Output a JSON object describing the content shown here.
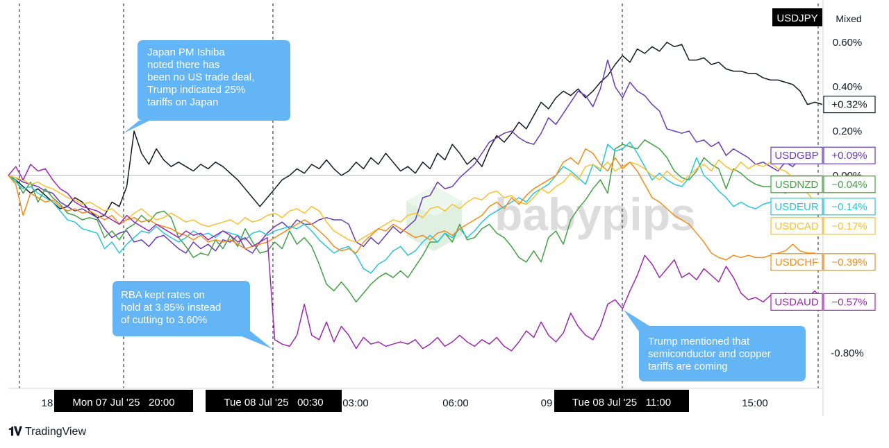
{
  "chart_data": {
    "type": "line",
    "title": "",
    "xlabel": "",
    "ylabel": "",
    "scale_mode": "Mixed",
    "ylim": [
      -0.9,
      0.7
    ],
    "y_ticks": [
      "0.60%",
      "0.40%",
      "0.20%",
      "0.00%",
      "-0.80%"
    ],
    "x_ticks": [
      "18",
      "03:00",
      "06:00",
      "09",
      "15:00"
    ],
    "time_markers": [
      "Mon 07 Jul '25   20:00",
      "Tue 08 Jul '25   00:30",
      "Tue 08 Jul '25   11:00"
    ],
    "x": [
      0,
      1,
      2,
      3,
      4,
      5,
      6,
      7,
      8,
      9,
      10,
      11,
      12,
      13,
      14,
      15,
      16,
      17,
      18,
      19,
      20,
      21,
      22,
      23,
      24,
      25,
      26,
      27,
      28,
      29,
      30,
      31,
      32,
      33,
      34,
      35,
      36,
      37,
      38,
      39,
      40,
      41,
      42,
      43,
      44,
      45,
      46,
      47,
      48,
      49,
      50,
      51,
      52,
      53,
      54,
      55,
      56,
      57,
      58,
      59,
      60,
      61,
      62,
      63,
      64,
      65,
      66,
      67,
      68,
      69,
      70,
      71,
      72,
      73,
      74,
      75,
      76,
      77,
      78,
      79,
      80,
      81,
      82,
      83,
      84,
      85,
      86,
      87,
      88,
      89,
      90,
      91,
      92,
      93,
      94,
      95,
      96,
      97,
      98,
      99,
      100,
      101,
      102,
      103,
      104,
      105,
      106,
      107,
      108,
      109,
      110
    ],
    "series": [
      {
        "name": "USDJPY",
        "label": "+0.32%",
        "color": "#131722",
        "values": [
          0,
          -0.02,
          -0.05,
          -0.08,
          -0.06,
          -0.09,
          -0.12,
          -0.15,
          -0.14,
          -0.1,
          -0.12,
          -0.16,
          -0.19,
          -0.18,
          -0.12,
          -0.14,
          -0.05,
          0.2,
          0.1,
          0.05,
          0.12,
          0.07,
          0.04,
          0.06,
          0.04,
          0.02,
          0.05,
          0.03,
          0.06,
          0.04,
          0.01,
          -0.02,
          -0.06,
          -0.1,
          -0.14,
          -0.1,
          -0.06,
          -0.02,
          0,
          0.03,
          0.01,
          0.05,
          0.03,
          0.07,
          0.03,
          0,
          0.02,
          0.06,
          0.03,
          0.08,
          0.05,
          0.1,
          0.06,
          0.02,
          0.04,
          0.01,
          0.06,
          0.03,
          0.1,
          0.07,
          0.14,
          0.1,
          0.05,
          0.08,
          0.04,
          0.12,
          0.18,
          0.15,
          0.19,
          0.24,
          0.21,
          0.27,
          0.33,
          0.3,
          0.35,
          0.38,
          0.36,
          0.39,
          0.35,
          0.38,
          0.42,
          0.45,
          0.5,
          0.54,
          0.51,
          0.57,
          0.55,
          0.58,
          0.56,
          0.6,
          0.58,
          0.59,
          0.52,
          0.52,
          0.53,
          0.5,
          0.51,
          0.48,
          0.47,
          0.47,
          0.46,
          0.46,
          0.44,
          0.43,
          0.43,
          0.42,
          0.41,
          0.38,
          0.32,
          0.33,
          0.32
        ]
      },
      {
        "name": "USDGBP",
        "label": "+0.09%",
        "color": "#673ab7",
        "values": [
          0,
          -0.01,
          -0.03,
          -0.04,
          -0.05,
          -0.07,
          -0.08,
          -0.12,
          -0.14,
          -0.16,
          -0.15,
          -0.17,
          -0.19,
          -0.24,
          -0.28,
          -0.26,
          -0.25,
          -0.3,
          -0.29,
          -0.32,
          -0.28,
          -0.27,
          -0.3,
          -0.33,
          -0.35,
          -0.3,
          -0.33,
          -0.31,
          -0.34,
          -0.29,
          -0.3,
          -0.27,
          -0.33,
          -0.35,
          -0.3,
          -0.26,
          -0.23,
          -0.21,
          -0.24,
          -0.2,
          -0.22,
          -0.22,
          -0.2,
          -0.19,
          -0.2,
          -0.2,
          -0.22,
          -0.3,
          -0.32,
          -0.28,
          -0.31,
          -0.27,
          -0.23,
          -0.26,
          -0.23,
          -0.2,
          -0.1,
          -0.09,
          -0.03,
          -0.06,
          -0.05,
          -0.01,
          0.02,
          0.05,
          0.1,
          0.15,
          0.17,
          0.19,
          0.2,
          0.17,
          0.15,
          0.14,
          0.19,
          0.26,
          0.23,
          0.28,
          0.33,
          0.38,
          0.36,
          0.31,
          0.39,
          0.52,
          0.4,
          0.35,
          0.42,
          0.38,
          0.36,
          0.32,
          0.29,
          0.21,
          0.2,
          0.19,
          0.2,
          0.15,
          0.16,
          0.13,
          0.15,
          0.09,
          0.12,
          0.1,
          0.08,
          0.05,
          0.06,
          0.04,
          0.02,
          0.06,
          0.04,
          0.08,
          0.09,
          0.07,
          0.09
        ]
      },
      {
        "name": "USDNZD",
        "label": "−0.04%",
        "color": "#43a047",
        "values": [
          0,
          -0.02,
          -0.08,
          -0.03,
          -0.12,
          -0.06,
          -0.1,
          -0.13,
          -0.17,
          -0.18,
          -0.2,
          -0.19,
          -0.2,
          -0.28,
          -0.25,
          -0.29,
          -0.24,
          -0.22,
          -0.18,
          -0.21,
          -0.17,
          -0.16,
          -0.19,
          -0.28,
          -0.32,
          -0.37,
          -0.35,
          -0.36,
          -0.29,
          -0.33,
          -0.27,
          -0.32,
          -0.24,
          -0.3,
          -0.35,
          -0.34,
          -0.3,
          -0.33,
          -0.25,
          -0.31,
          -0.28,
          -0.32,
          -0.4,
          -0.49,
          -0.52,
          -0.48,
          -0.52,
          -0.57,
          -0.53,
          -0.49,
          -0.46,
          -0.44,
          -0.46,
          -0.43,
          -0.46,
          -0.41,
          -0.36,
          -0.3,
          -0.3,
          -0.26,
          -0.3,
          -0.22,
          -0.29,
          -0.28,
          -0.24,
          -0.22,
          -0.26,
          -0.28,
          -0.32,
          -0.37,
          -0.39,
          -0.34,
          -0.39,
          -0.28,
          -0.25,
          -0.31,
          -0.2,
          -0.15,
          -0.11,
          -0.06,
          -0.02,
          -0.08,
          0.12,
          0.14,
          0.13,
          0.12,
          0.16,
          0.14,
          0.12,
          0.08,
          0.02,
          -0.01,
          -0.02,
          0.02,
          0.08,
          0.05,
          0.03,
          -0.06,
          0.03,
          0.01,
          -0.02,
          -0.04,
          -0.05,
          -0.05,
          -0.06,
          -0.08,
          -0.06,
          -0.05,
          -0.04,
          -0.05,
          -0.04
        ]
      },
      {
        "name": "USDEUR",
        "label": "−0.14%",
        "color": "#26c6da",
        "values": [
          0,
          -0.03,
          -0.06,
          -0.05,
          -0.08,
          -0.1,
          -0.12,
          -0.16,
          -0.2,
          -0.21,
          -0.24,
          -0.25,
          -0.26,
          -0.33,
          -0.3,
          -0.35,
          -0.31,
          -0.28,
          -0.25,
          -0.26,
          -0.23,
          -0.26,
          -0.28,
          -0.3,
          -0.28,
          -0.25,
          -0.27,
          -0.26,
          -0.28,
          -0.25,
          -0.26,
          -0.27,
          -0.29,
          -0.26,
          -0.25,
          -0.27,
          -0.25,
          -0.24,
          -0.23,
          -0.24,
          -0.22,
          -0.25,
          -0.29,
          -0.32,
          -0.35,
          -0.33,
          -0.32,
          -0.36,
          -0.42,
          -0.44,
          -0.4,
          -0.38,
          -0.34,
          -0.32,
          -0.36,
          -0.34,
          -0.3,
          -0.27,
          -0.3,
          -0.26,
          -0.28,
          -0.24,
          -0.28,
          -0.25,
          -0.21,
          -0.18,
          -0.16,
          -0.14,
          -0.12,
          -0.1,
          -0.12,
          -0.08,
          -0.06,
          -0.04,
          0,
          0.04,
          0.02,
          -0.01,
          -0.04,
          0.05,
          0.02,
          0.14,
          0.11,
          0.12,
          0.15,
          0.1,
          0.04,
          -0.02,
          0.01,
          -0.02,
          -0.04,
          -0.05,
          -0.01,
          0.08,
          0,
          -0.03,
          -0.07,
          -0.1,
          -0.14,
          -0.12,
          -0.14,
          -0.15,
          -0.13,
          -0.12,
          -0.15,
          -0.13,
          -0.14,
          -0.12,
          -0.14,
          -0.14,
          -0.14
        ]
      },
      {
        "name": "USDCAD",
        "label": "−0.17%",
        "color": "#fbc02d",
        "values": [
          0,
          -0.01,
          -0.02,
          -0.04,
          -0.03,
          -0.05,
          -0.06,
          -0.08,
          -0.1,
          -0.11,
          -0.13,
          -0.12,
          -0.14,
          -0.16,
          -0.15,
          -0.18,
          -0.2,
          -0.17,
          -0.15,
          -0.18,
          -0.2,
          -0.19,
          -0.17,
          -0.19,
          -0.21,
          -0.2,
          -0.22,
          -0.23,
          -0.22,
          -0.21,
          -0.2,
          -0.22,
          -0.19,
          -0.21,
          -0.2,
          -0.18,
          -0.17,
          -0.19,
          -0.16,
          -0.15,
          -0.17,
          -0.14,
          -0.16,
          -0.21,
          -0.25,
          -0.27,
          -0.29,
          -0.3,
          -0.28,
          -0.26,
          -0.24,
          -0.22,
          -0.2,
          -0.21,
          -0.18,
          -0.17,
          -0.19,
          -0.15,
          -0.14,
          -0.16,
          -0.13,
          -0.15,
          -0.12,
          -0.1,
          -0.11,
          -0.08,
          -0.07,
          -0.1,
          -0.09,
          -0.12,
          -0.13,
          -0.1,
          -0.06,
          -0.08,
          -0.05,
          -0.03,
          0.01,
          -0.02,
          0.04,
          0.05,
          0.03,
          0.06,
          0.02,
          0.04,
          0.06,
          0.05,
          0.03,
          0,
          -0.02,
          0.02,
          -0.01,
          -0.03,
          0,
          0.03,
          0.05,
          0.02,
          0.07,
          0.04,
          0.02,
          0.06,
          0.03,
          0.05,
          0.04,
          0.06,
          0.03,
          0.02,
          -0.01,
          -0.05,
          -0.08,
          -0.12,
          -0.17
        ]
      },
      {
        "name": "USDCHF",
        "label": "−0.39%",
        "color": "#ef8c1a",
        "values": [
          0,
          -0.04,
          -0.18,
          -0.08,
          -0.1,
          -0.12,
          -0.11,
          -0.14,
          -0.16,
          -0.15,
          -0.17,
          -0.16,
          -0.18,
          -0.2,
          -0.18,
          -0.22,
          -0.2,
          -0.19,
          -0.21,
          -0.2,
          -0.22,
          -0.23,
          -0.24,
          -0.26,
          -0.27,
          -0.29,
          -0.27,
          -0.3,
          -0.29,
          -0.3,
          -0.29,
          -0.31,
          -0.33,
          -0.32,
          -0.31,
          -0.3,
          -0.28,
          -0.26,
          -0.24,
          -0.22,
          -0.2,
          -0.22,
          -0.25,
          -0.28,
          -0.32,
          -0.34,
          -0.33,
          -0.35,
          -0.3,
          -0.27,
          -0.24,
          -0.25,
          -0.22,
          -0.24,
          -0.26,
          -0.28,
          -0.27,
          -0.29,
          -0.26,
          -0.25,
          -0.27,
          -0.24,
          -0.22,
          -0.2,
          -0.18,
          -0.14,
          -0.12,
          -0.15,
          -0.1,
          -0.13,
          -0.09,
          -0.06,
          -0.04,
          -0.02,
          0,
          0.06,
          0.08,
          0.05,
          0.12,
          0.1,
          0.05,
          0.02,
          0.08,
          0.03,
          0.06,
          0.02,
          -0.04,
          -0.1,
          -0.12,
          -0.15,
          -0.18,
          -0.2,
          -0.22,
          -0.26,
          -0.3,
          -0.35,
          -0.37,
          -0.38,
          -0.36,
          -0.37,
          -0.36,
          -0.37,
          -0.37,
          -0.36,
          -0.35,
          -0.34,
          -0.31,
          -0.34,
          -0.35,
          -0.35,
          -0.39
        ]
      },
      {
        "name": "USDAUD",
        "label": "−0.57%",
        "color": "#9c27b0",
        "values": [
          0,
          0.04,
          -0.02,
          0.05,
          0.02,
          0.03,
          -0.02,
          -0.06,
          -0.08,
          -0.12,
          -0.14,
          -0.15,
          -0.16,
          -0.18,
          -0.2,
          -0.22,
          -0.18,
          -0.21,
          -0.23,
          -0.25,
          -0.22,
          -0.24,
          -0.26,
          -0.28,
          -0.25,
          -0.27,
          -0.26,
          -0.29,
          -0.27,
          -0.25,
          -0.27,
          -0.3,
          -0.28,
          -0.32,
          -0.3,
          -0.28,
          -0.74,
          -0.76,
          -0.77,
          -0.72,
          -0.58,
          -0.72,
          -0.74,
          -0.66,
          -0.75,
          -0.68,
          -0.72,
          -0.78,
          -0.73,
          -0.76,
          -0.75,
          -0.77,
          -0.76,
          -0.75,
          -0.76,
          -0.74,
          -0.78,
          -0.76,
          -0.73,
          -0.77,
          -0.75,
          -0.72,
          -0.75,
          -0.77,
          -0.74,
          -0.76,
          -0.73,
          -0.77,
          -0.79,
          -0.75,
          -0.7,
          -0.73,
          -0.66,
          -0.72,
          -0.75,
          -0.71,
          -0.62,
          -0.68,
          -0.72,
          -0.74,
          -0.68,
          -0.58,
          -0.56,
          -0.6,
          -0.52,
          -0.45,
          -0.36,
          -0.4,
          -0.46,
          -0.42,
          -0.38,
          -0.46,
          -0.44,
          -0.47,
          -0.42,
          -0.45,
          -0.48,
          -0.41,
          -0.46,
          -0.53,
          -0.56,
          -0.55,
          -0.57,
          -0.54,
          -0.56,
          -0.53,
          -0.56,
          -0.54,
          -0.55,
          -0.52,
          -0.57
        ]
      }
    ],
    "annotations": [
      "Japan PM Ishiba noted there has been no US trade deal, Trump indicated 25% tariffs on Japan",
      "RBA kept rates on hold at 3.85% instead of cutting to 3.60%",
      "Trump mentioned that semiconductor and copper tariffs are coming"
    ]
  },
  "callouts": [
    {
      "lines": [
        "Japan PM Ishiba",
        "noted there has",
        "been no US trade deal,",
        "Trump indicated 25%",
        "tariffs on Japan"
      ]
    },
    {
      "lines": [
        "RBA kept rates on",
        "hold at 3.85% instead",
        "of cutting to 3.60%"
      ]
    },
    {
      "lines": [
        "Trump mentioned that",
        "semiconductor and copper",
        "tariffs are coming"
      ]
    }
  ],
  "watermark": "babypips",
  "footer": {
    "brand": "TradingView"
  },
  "colors": {
    "callout": "#64b5f6",
    "axis_bg": "#000000",
    "grid": "#b2b5be"
  }
}
